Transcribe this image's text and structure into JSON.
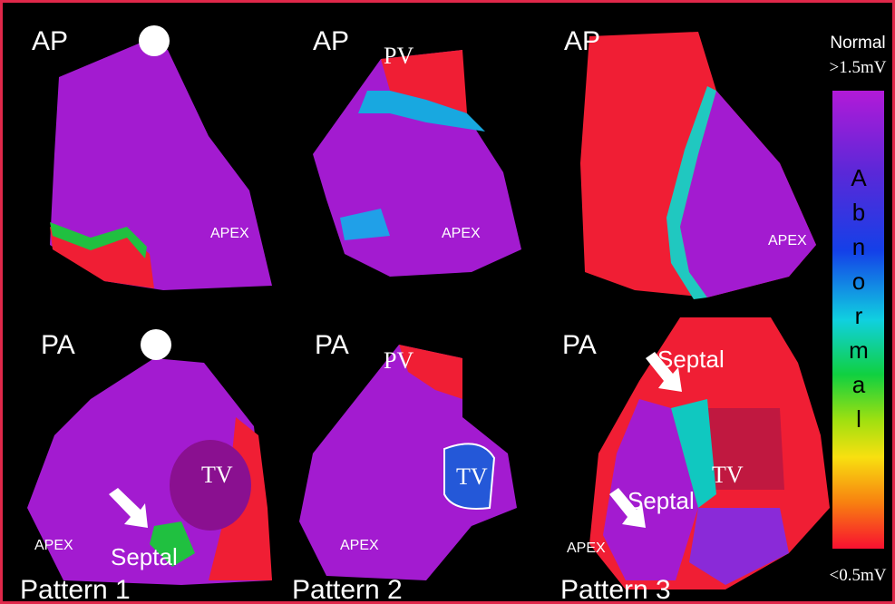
{
  "panels": [
    {
      "view": "AP",
      "apex": "APEX"
    },
    {
      "view": "AP",
      "pv": "PV",
      "apex": "APEX"
    },
    {
      "view": "AP",
      "apex": "APEX"
    },
    {
      "view": "PA",
      "tv": "TV",
      "septal": [
        "Septal"
      ],
      "apex": "APEX",
      "pattern": "Pattern 1"
    },
    {
      "view": "PA",
      "pv": "PV",
      "tv": "TV",
      "apex": "APEX",
      "pattern": "Pattern 2"
    },
    {
      "view": "PA",
      "tv": "TV",
      "septal": [
        "Septal",
        "Septal"
      ],
      "apex": "APEX",
      "pattern": "Pattern 3"
    }
  ],
  "legend": {
    "top": "Normal",
    "top_value": ">1.5mV",
    "letters": [
      "A",
      "b",
      "n",
      "o",
      "r",
      "m",
      "a",
      "l"
    ],
    "bottom_value": "<0.5mV"
  }
}
